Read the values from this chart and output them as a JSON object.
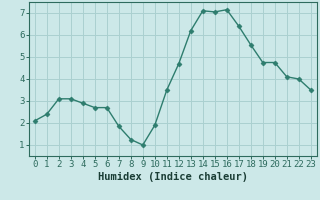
{
  "x": [
    0,
    1,
    2,
    3,
    4,
    5,
    6,
    7,
    8,
    9,
    10,
    11,
    12,
    13,
    14,
    15,
    16,
    17,
    18,
    19,
    20,
    21,
    22,
    23
  ],
  "y": [
    2.1,
    2.4,
    3.1,
    3.1,
    2.9,
    2.7,
    2.7,
    1.85,
    1.25,
    1.0,
    1.9,
    3.5,
    4.7,
    6.2,
    7.1,
    7.05,
    7.15,
    6.4,
    5.55,
    4.75,
    4.75,
    4.1,
    4.0,
    3.5
  ],
  "line_color": "#2e7d6e",
  "marker": "D",
  "markersize": 2.5,
  "linewidth": 1.0,
  "xlabel": "Humidex (Indice chaleur)",
  "xlim": [
    -0.5,
    23.5
  ],
  "ylim": [
    0.5,
    7.5
  ],
  "yticks": [
    1,
    2,
    3,
    4,
    5,
    6,
    7
  ],
  "xticks": [
    0,
    1,
    2,
    3,
    4,
    5,
    6,
    7,
    8,
    9,
    10,
    11,
    12,
    13,
    14,
    15,
    16,
    17,
    18,
    19,
    20,
    21,
    22,
    23
  ],
  "bg_color": "#cce8e8",
  "grid_color": "#aad0d0",
  "tick_color": "#2e6b5e",
  "label_color": "#1a3d35",
  "xlabel_fontsize": 7.5,
  "tick_fontsize": 6.5
}
